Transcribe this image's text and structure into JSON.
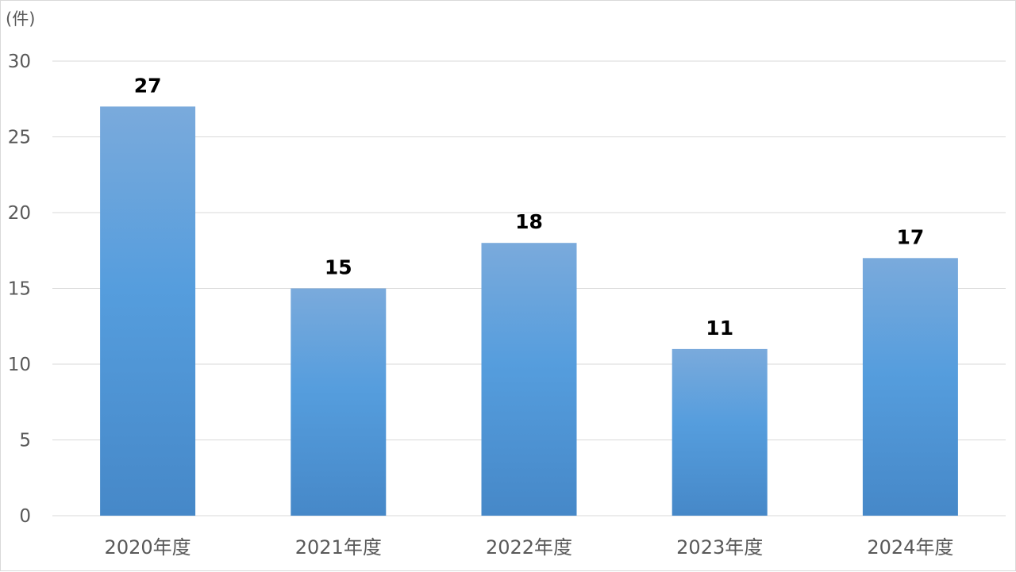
{
  "chart_data": {
    "type": "bar",
    "title": "",
    "xlabel": "",
    "ylabel": "",
    "unit_label": "(件)",
    "categories": [
      "2020年度",
      "2021年度",
      "2022年度",
      "2023年度",
      "2024年度"
    ],
    "values": [
      27,
      15,
      18,
      11,
      17
    ],
    "ylim": [
      0,
      30
    ],
    "y_ticks": [
      0,
      5,
      10,
      15,
      20,
      25,
      30
    ],
    "grid": true,
    "legend": "none",
    "data_labels": true,
    "colors": {
      "bar_top": "#7aaadc",
      "bar_mid": "#559ddd",
      "bar_bottom": "#4688c8",
      "grid": "#d9d9d9",
      "axis_text": "#595959",
      "data_label": "#000000"
    }
  }
}
